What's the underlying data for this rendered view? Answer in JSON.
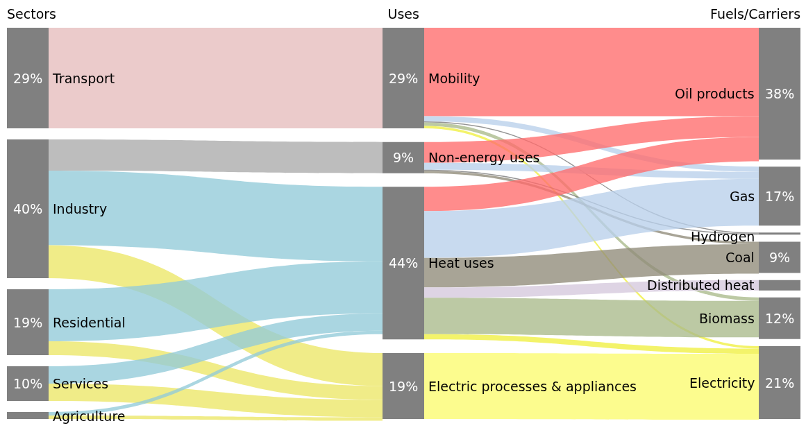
{
  "chart_data": {
    "type": "other",
    "categories": [
      "Transport",
      "Industry",
      "Residential",
      "Services",
      "Agriculture",
      "Mobility",
      "Non-energy uses",
      "Heat uses",
      "Electric processes & appliances",
      "Oil products",
      "Gas",
      "Hydrogen",
      "Coal",
      "Distributed heat",
      "Biomass",
      "Electricity"
    ],
    "series": [
      {
        "name": "Sectors",
        "color": "#808080",
        "values": [
          29,
          40,
          19,
          10,
          null,
          null,
          null,
          null,
          null,
          null,
          null,
          null,
          null,
          null,
          null,
          null
        ],
        "value_labels": [
          "29%",
          "40%",
          "19%",
          "10%",
          null,
          null,
          null,
          null,
          null,
          null,
          null,
          null,
          null,
          null,
          null,
          null
        ]
      },
      {
        "name": "Uses",
        "color": "#808080",
        "values": [
          null,
          null,
          null,
          null,
          null,
          29,
          9,
          44,
          19,
          null,
          null,
          null,
          null,
          null,
          null,
          null
        ],
        "value_labels": [
          null,
          null,
          null,
          null,
          null,
          "29%",
          "9%",
          "44%",
          "19%",
          null,
          null,
          null,
          null,
          null,
          null,
          null
        ]
      },
      {
        "name": "Fuels/Carriers",
        "color": "#808080",
        "values": [
          null,
          null,
          null,
          null,
          null,
          null,
          null,
          null,
          null,
          38,
          17,
          null,
          9,
          null,
          12,
          21
        ],
        "value_labels": [
          null,
          null,
          null,
          null,
          null,
          null,
          null,
          null,
          null,
          "38%",
          "17%",
          null,
          "9%",
          null,
          "12%",
          "21%"
        ]
      }
    ]
  }
}
